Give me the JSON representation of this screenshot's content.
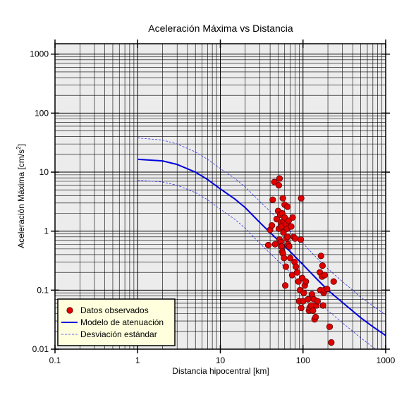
{
  "chart_data": {
    "type": "scatter",
    "title": "Aceleración Máxima vs Distancia",
    "xlabel": "Distancia hipocentral [km]",
    "ylabel": "Aceleración Máxima [cm/s",
    "ylabel_sup": "2",
    "ylabel_end": "]",
    "xscale": "log",
    "yscale": "log",
    "xlim": [
      0.1,
      1000
    ],
    "ylim": [
      0.01,
      1500
    ],
    "xticks": [
      {
        "v": 0.1,
        "label": "0.1"
      },
      {
        "v": 1,
        "label": "1"
      },
      {
        "v": 10,
        "label": "10"
      },
      {
        "v": 100,
        "label": "100"
      },
      {
        "v": 1000,
        "label": "1000"
      }
    ],
    "yticks": [
      {
        "v": 0.01,
        "label": "0.01"
      },
      {
        "v": 0.1,
        "label": "0.1"
      },
      {
        "v": 1,
        "label": "1"
      },
      {
        "v": 10,
        "label": "10"
      },
      {
        "v": 100,
        "label": "100"
      },
      {
        "v": 1000,
        "label": "1000"
      }
    ],
    "grid": true,
    "legend_position": "bottom-left",
    "colors": {
      "background": "#ececec",
      "grid": "#000000",
      "points": "#e00000",
      "point_edge": "#600000",
      "model": "#0000dd",
      "stddev": "#3333ee",
      "legend_bg": "#ffffdd"
    },
    "series": [
      {
        "name": "Datos observados",
        "kind": "points",
        "points": [
          [
            38,
            0.58
          ],
          [
            40,
            1.05
          ],
          [
            42,
            1.25
          ],
          [
            43,
            3.4
          ],
          [
            45,
            6.8
          ],
          [
            46,
            0.6
          ],
          [
            48,
            1.6
          ],
          [
            50,
            2.2
          ],
          [
            51,
            6.0
          ],
          [
            51,
            1.1
          ],
          [
            52,
            0.72
          ],
          [
            52,
            7.8
          ],
          [
            53,
            1.9
          ],
          [
            54,
            1.4
          ],
          [
            54,
            0.65
          ],
          [
            55,
            0.55
          ],
          [
            55,
            1.2
          ],
          [
            56,
            2.0
          ],
          [
            56,
            0.45
          ],
          [
            57,
            3.6
          ],
          [
            57,
            0.42
          ],
          [
            58,
            0.95
          ],
          [
            58,
            1.5
          ],
          [
            59,
            0.35
          ],
          [
            60,
            1.7
          ],
          [
            60,
            2.8
          ],
          [
            61,
            0.12
          ],
          [
            62,
            0.25
          ],
          [
            62,
            1.3
          ],
          [
            63,
            0.75
          ],
          [
            64,
            1.1
          ],
          [
            65,
            0.8
          ],
          [
            65,
            2.6
          ],
          [
            66,
            0.6
          ],
          [
            67,
            1.5
          ],
          [
            68,
            0.55
          ],
          [
            70,
            0.35
          ],
          [
            72,
            1.2
          ],
          [
            74,
            0.18
          ],
          [
            75,
            1.7
          ],
          [
            77,
            0.8
          ],
          [
            79,
            0.3
          ],
          [
            80,
            0.75
          ],
          [
            82,
            0.25
          ],
          [
            85,
            0.2
          ],
          [
            88,
            0.14
          ],
          [
            90,
            0.065
          ],
          [
            92,
            0.1
          ],
          [
            94,
            0.72
          ],
          [
            95,
            3.6
          ],
          [
            95,
            0.05
          ],
          [
            98,
            0.16
          ],
          [
            100,
            0.065
          ],
          [
            102,
            0.09
          ],
          [
            105,
            0.12
          ],
          [
            108,
            0.14
          ],
          [
            115,
            0.07
          ],
          [
            118,
            0.045
          ],
          [
            120,
            0.05
          ],
          [
            125,
            0.055
          ],
          [
            128,
            0.085
          ],
          [
            132,
            0.045
          ],
          [
            135,
            0.07
          ],
          [
            138,
            0.032
          ],
          [
            142,
            0.035
          ],
          [
            145,
            0.055
          ],
          [
            150,
            0.065
          ],
          [
            160,
            0.2
          ],
          [
            162,
            0.1
          ],
          [
            165,
            0.38
          ],
          [
            170,
            0.17
          ],
          [
            172,
            0.26
          ],
          [
            175,
            0.055
          ],
          [
            178,
            0.09
          ],
          [
            180,
            0.1
          ],
          [
            183,
            0.18
          ],
          [
            195,
            0.105
          ],
          [
            210,
            0.024
          ],
          [
            220,
            0.013
          ],
          [
            235,
            0.14
          ]
        ]
      },
      {
        "name": "Modelo de atenuación",
        "kind": "line",
        "points": [
          [
            1,
            16.5
          ],
          [
            2,
            15.5
          ],
          [
            3,
            13.5
          ],
          [
            5,
            10
          ],
          [
            7,
            7.5
          ],
          [
            10,
            5.2
          ],
          [
            15,
            3.5
          ],
          [
            20,
            2.5
          ],
          [
            30,
            1.4
          ],
          [
            50,
            0.7
          ],
          [
            70,
            0.45
          ],
          [
            100,
            0.27
          ],
          [
            150,
            0.15
          ],
          [
            200,
            0.1
          ],
          [
            300,
            0.062
          ],
          [
            500,
            0.034
          ],
          [
            700,
            0.024
          ],
          [
            1000,
            0.017
          ]
        ]
      },
      {
        "name": "Desviación estándar",
        "kind": "band",
        "upper": [
          [
            1,
            38
          ],
          [
            2,
            35
          ],
          [
            3,
            30
          ],
          [
            5,
            22
          ],
          [
            7,
            16.5
          ],
          [
            10,
            11.5
          ],
          [
            15,
            7.8
          ],
          [
            20,
            5.6
          ],
          [
            30,
            3.2
          ],
          [
            50,
            1.6
          ],
          [
            70,
            1.0
          ],
          [
            100,
            0.62
          ],
          [
            150,
            0.34
          ],
          [
            200,
            0.23
          ],
          [
            300,
            0.14
          ],
          [
            500,
            0.076
          ],
          [
            700,
            0.054
          ],
          [
            1000,
            0.038
          ]
        ],
        "lower": [
          [
            1,
            7.3
          ],
          [
            2,
            6.8
          ],
          [
            3,
            6.0
          ],
          [
            5,
            4.5
          ],
          [
            7,
            3.4
          ],
          [
            10,
            2.35
          ],
          [
            15,
            1.58
          ],
          [
            20,
            1.12
          ],
          [
            30,
            0.62
          ],
          [
            50,
            0.31
          ],
          [
            70,
            0.2
          ],
          [
            100,
            0.12
          ],
          [
            150,
            0.066
          ],
          [
            200,
            0.045
          ],
          [
            300,
            0.028
          ],
          [
            500,
            0.0155
          ],
          [
            700,
            0.0108
          ],
          [
            1000,
            0.0076
          ]
        ]
      }
    ]
  }
}
